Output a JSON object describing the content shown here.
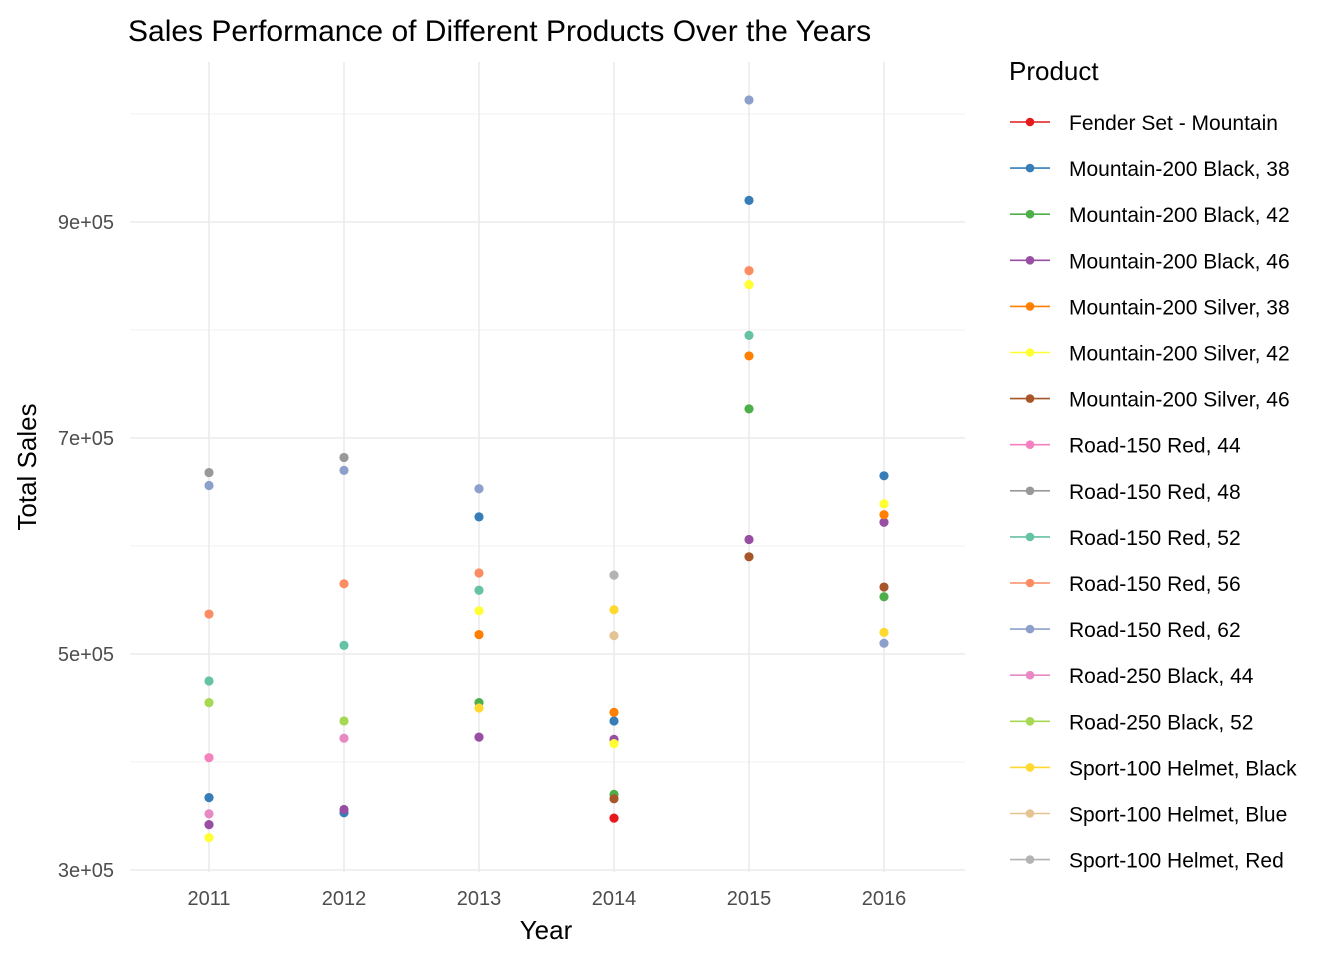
{
  "chart_data": {
    "type": "scatter",
    "title": "Sales Performance of Different Products Over the Years",
    "xlabel": "Year",
    "ylabel": "Total Sales",
    "categories": [
      "2011",
      "2012",
      "2013",
      "2014",
      "2015",
      "2016"
    ],
    "ylim": [
      295000,
      1010000
    ],
    "yticks": [
      300000,
      500000,
      700000,
      900000
    ],
    "ytick_labels": [
      "3e+05",
      "5e+05",
      "7e+05",
      "9e+05"
    ],
    "grid": true,
    "legend_position": "right",
    "legend_title": "Product",
    "series": [
      {
        "name": "Fender Set - Mountain",
        "color": "#E41A1C",
        "values": [
          null,
          null,
          null,
          348000,
          null,
          null
        ]
      },
      {
        "name": "Mountain-200 Black, 38",
        "color": "#377EB8",
        "values": [
          367000,
          353000,
          627000,
          438000,
          920000,
          665000
        ]
      },
      {
        "name": "Mountain-200 Black, 42",
        "color": "#4DAF4A",
        "values": [
          null,
          null,
          455000,
          370000,
          727000,
          553000
        ]
      },
      {
        "name": "Mountain-200 Black, 46",
        "color": "#984EA3",
        "values": [
          342000,
          356000,
          423000,
          421000,
          606000,
          622000
        ]
      },
      {
        "name": "Mountain-200 Silver, 38",
        "color": "#FF7F00",
        "values": [
          null,
          null,
          518000,
          446000,
          776000,
          629000
        ]
      },
      {
        "name": "Mountain-200 Silver, 42",
        "color": "#FFFF33",
        "values": [
          330000,
          null,
          540000,
          417000,
          842000,
          639000
        ]
      },
      {
        "name": "Mountain-200 Silver, 46",
        "color": "#A65628",
        "values": [
          null,
          null,
          null,
          366000,
          590000,
          562000
        ]
      },
      {
        "name": "Road-150 Red, 44",
        "color": "#F781BF",
        "values": [
          404000,
          null,
          null,
          null,
          null,
          null
        ]
      },
      {
        "name": "Road-150 Red, 48",
        "color": "#999999",
        "values": [
          668000,
          682000,
          null,
          null,
          null,
          null
        ]
      },
      {
        "name": "Road-150 Red, 52",
        "color": "#66C2A5",
        "values": [
          475000,
          508000,
          559000,
          null,
          795000,
          null
        ]
      },
      {
        "name": "Road-150 Red, 56",
        "color": "#FC8D62",
        "values": [
          537000,
          565000,
          575000,
          null,
          855000,
          null
        ]
      },
      {
        "name": "Road-150 Red, 62",
        "color": "#8DA0CB",
        "values": [
          656000,
          670000,
          653000,
          null,
          1013000,
          510000
        ]
      },
      {
        "name": "Road-250 Black, 44",
        "color": "#E78AC3",
        "values": [
          352000,
          422000,
          null,
          null,
          null,
          null
        ]
      },
      {
        "name": "Road-250 Black, 52",
        "color": "#A6D854",
        "values": [
          455000,
          438000,
          null,
          null,
          null,
          null
        ]
      },
      {
        "name": "Sport-100 Helmet, Black",
        "color": "#FFD92F",
        "values": [
          null,
          null,
          450000,
          541000,
          null,
          520000
        ]
      },
      {
        "name": "Sport-100 Helmet, Blue",
        "color": "#E5C494",
        "values": [
          null,
          null,
          null,
          517000,
          null,
          null
        ]
      },
      {
        "name": "Sport-100 Helmet, Red",
        "color": "#B3B3B3",
        "values": [
          null,
          null,
          null,
          573000,
          null,
          null
        ]
      }
    ]
  }
}
